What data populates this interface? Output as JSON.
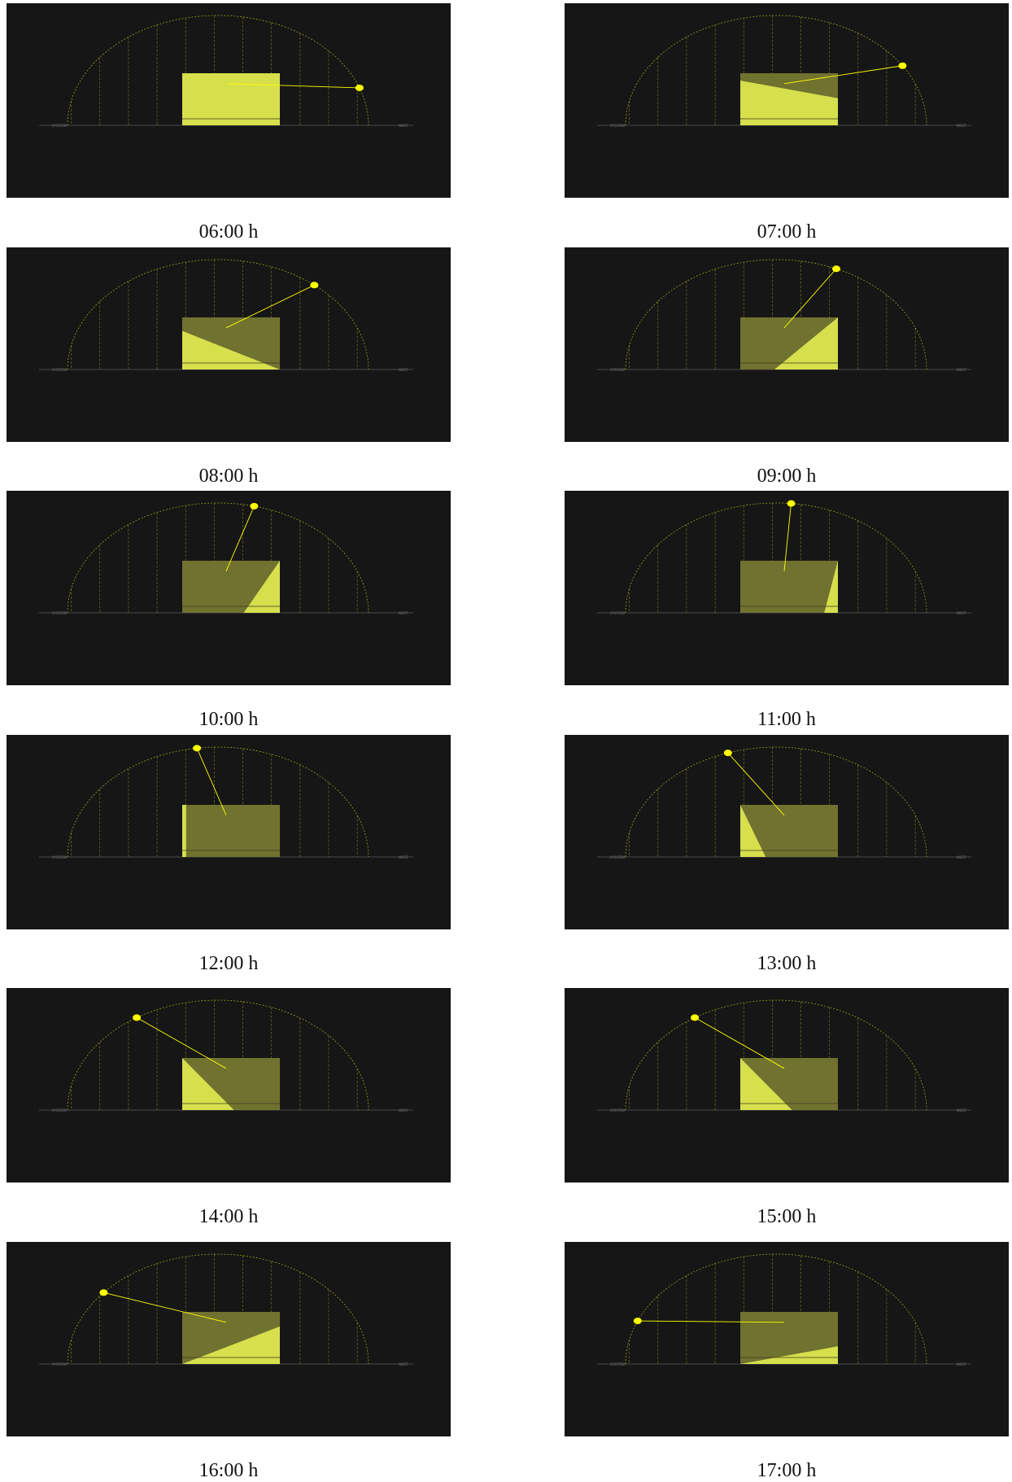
{
  "colors": {
    "background": "#161616",
    "dome_line": "#9a9a1e",
    "sun": "#ffff00",
    "sunlit": "#d6df4c",
    "shaded": "#70722f"
  },
  "icons": {
    "sun": "sun-icon"
  },
  "ground_labels": {
    "left": "O'OSTEN",
    "right": "WEST"
  },
  "panels": [
    {
      "caption": "06:00 h",
      "sun_pos": 0.97,
      "sun_elev": 0.07,
      "shade_left": 0.0,
      "shade_right": 0.0,
      "cut_left": 0.0,
      "cut_right": 0.0
    },
    {
      "caption": "07:00 h",
      "sun_pos": 0.92,
      "sun_elev": 0.3,
      "shade_left": 0.14,
      "shade_right": 0.48,
      "cut_left": 0.0,
      "cut_right": 0.0
    },
    {
      "caption": "08:00 h",
      "sun_pos": 0.82,
      "sun_elev": 0.6,
      "shade_left": 0.26,
      "shade_right": 1.0,
      "cut_left": 0.0,
      "cut_right": 0.0
    },
    {
      "caption": "09:00 h",
      "sun_pos": 0.7,
      "sun_elev": 0.82,
      "shade_left": 0.0,
      "shade_right": 0.65,
      "cut_left": 0.35,
      "cut_right": 0.0
    },
    {
      "caption": "10:00 h",
      "sun_pos": 0.62,
      "sun_elev": 0.95,
      "shade_left": 0.0,
      "shade_right": 1.0,
      "cut_left": 0.63,
      "cut_right": 0.0
    },
    {
      "caption": "11:00 h",
      "sun_pos": 0.55,
      "sun_elev": 0.99,
      "shade_left": 0.0,
      "shade_right": 1.0,
      "cut_left": 0.86,
      "cut_right": 0.0
    },
    {
      "caption": "12:00 h",
      "sun_pos": 0.43,
      "sun_elev": 1.0,
      "shade_left": 0.0,
      "shade_right": 1.0,
      "cut_left": 0.04,
      "cut_right": 0.0
    },
    {
      "caption": "13:00 h",
      "sun_pos": 0.34,
      "sun_elev": 0.98,
      "shade_left": 0.0,
      "shade_right": 1.0,
      "cut_left": 0.26,
      "cut_right": 0.0
    },
    {
      "caption": "14:00 h",
      "sun_pos": 0.23,
      "sun_elev": 0.85,
      "shade_left": 0.0,
      "shade_right": 1.0,
      "cut_left": 0.53,
      "cut_right": 0.0
    },
    {
      "caption": "15:00 h",
      "sun_pos": 0.23,
      "sun_elev": 0.85,
      "shade_left": 0.0,
      "shade_right": 1.0,
      "cut_left": 0.53,
      "cut_right": 0.0
    },
    {
      "caption": "16:00 h",
      "sun_pos": 0.12,
      "sun_elev": 0.6,
      "shade_left": 1.0,
      "shade_right": 0.28,
      "cut_left": 0.0,
      "cut_right": 0.0
    },
    {
      "caption": "17:00 h",
      "sun_pos": 0.04,
      "sun_elev": 0.3,
      "shade_left": 1.0,
      "shade_right": 0.66,
      "cut_left": 0.0,
      "cut_right": 0.0
    }
  ]
}
